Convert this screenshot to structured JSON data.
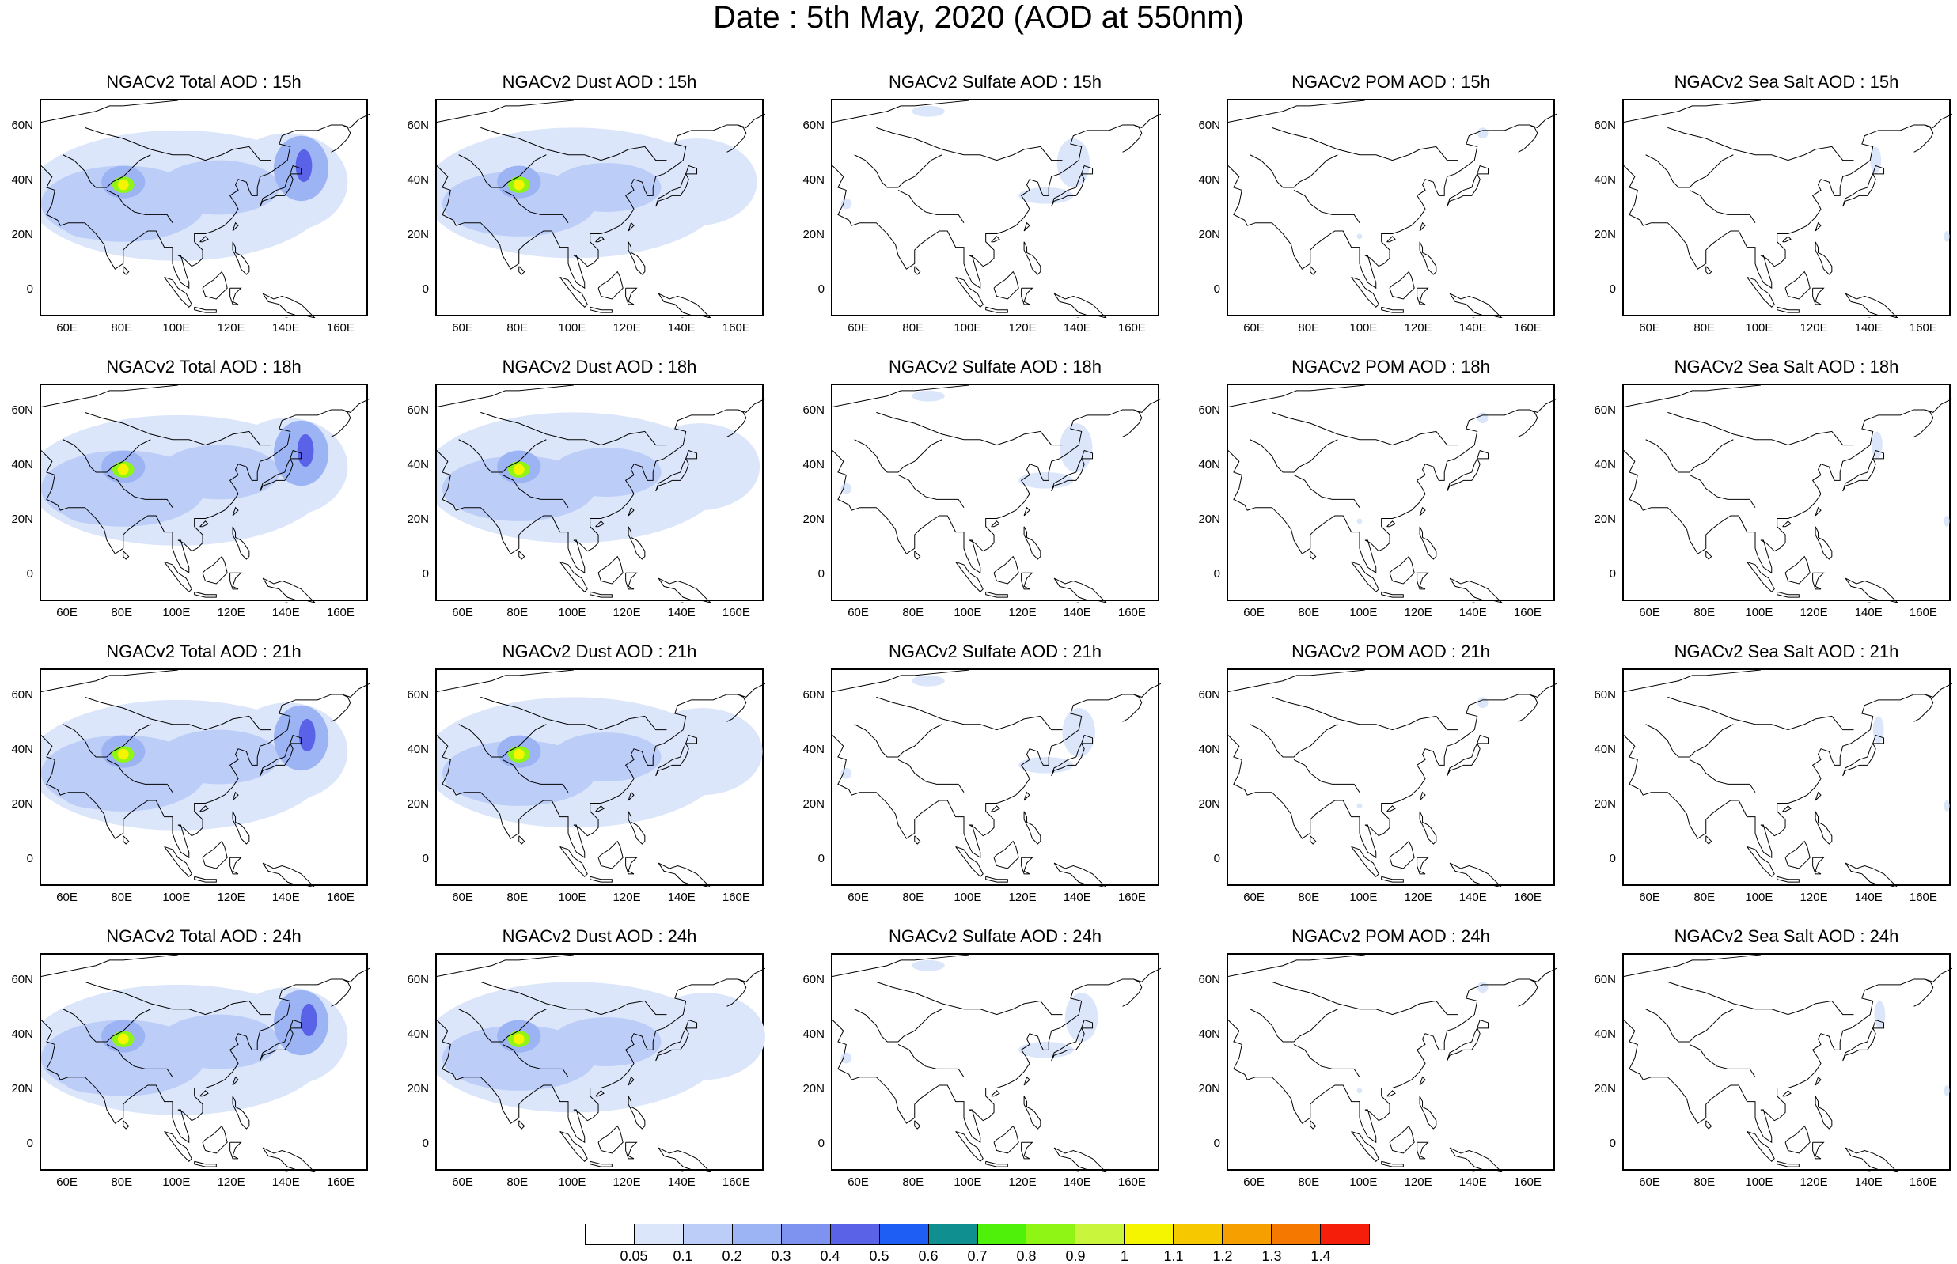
{
  "title": "Date : 5th May, 2020 (AOD at 550nm)",
  "map_axes": {
    "lat_ticks": [
      "60N",
      "40N",
      "20N",
      "0"
    ],
    "lon_ticks": [
      "60E",
      "80E",
      "100E",
      "120E",
      "140E",
      "160E"
    ],
    "lon_range": [
      50,
      170
    ],
    "lat_range": [
      -10,
      70
    ]
  },
  "panels": [
    {
      "title": "NGACv2 Total AOD : 15h",
      "species": "total",
      "hour": 15
    },
    {
      "title": "NGACv2 Dust AOD : 15h",
      "species": "dust",
      "hour": 15
    },
    {
      "title": "NGACv2 Sulfate AOD : 15h",
      "species": "sulfate",
      "hour": 15
    },
    {
      "title": "NGACv2 POM AOD : 15h",
      "species": "pom",
      "hour": 15
    },
    {
      "title": "NGACv2 Sea Salt AOD : 15h",
      "species": "seasalt",
      "hour": 15
    },
    {
      "title": "NGACv2 Total AOD : 18h",
      "species": "total",
      "hour": 18
    },
    {
      "title": "NGACv2 Dust AOD : 18h",
      "species": "dust",
      "hour": 18
    },
    {
      "title": "NGACv2 Sulfate AOD : 18h",
      "species": "sulfate",
      "hour": 18
    },
    {
      "title": "NGACv2 POM AOD : 18h",
      "species": "pom",
      "hour": 18
    },
    {
      "title": "NGACv2 Sea Salt AOD : 18h",
      "species": "seasalt",
      "hour": 18
    },
    {
      "title": "NGACv2 Total AOD : 21h",
      "species": "total",
      "hour": 21
    },
    {
      "title": "NGACv2 Dust AOD : 21h",
      "species": "dust",
      "hour": 21
    },
    {
      "title": "NGACv2 Sulfate AOD : 21h",
      "species": "sulfate",
      "hour": 21
    },
    {
      "title": "NGACv2 POM AOD : 21h",
      "species": "pom",
      "hour": 21
    },
    {
      "title": "NGACv2 Sea Salt AOD : 21h",
      "species": "seasalt",
      "hour": 21
    },
    {
      "title": "NGACv2 Total AOD : 24h",
      "species": "total",
      "hour": 24
    },
    {
      "title": "NGACv2 Dust AOD : 24h",
      "species": "dust",
      "hour": 24
    },
    {
      "title": "NGACv2 Sulfate AOD : 24h",
      "species": "sulfate",
      "hour": 24
    },
    {
      "title": "NGACv2 POM AOD : 24h",
      "species": "pom",
      "hour": 24
    },
    {
      "title": "NGACv2 Sea Salt  AOD : 24h",
      "species": "seasalt",
      "hour": 24
    }
  ],
  "colorbar": {
    "labels": [
      "0.05",
      "0.1",
      "0.2",
      "0.3",
      "0.4",
      "0.5",
      "0.6",
      "0.7",
      "0.8",
      "0.9",
      "1",
      "1.1",
      "1.2",
      "1.3",
      "1.4"
    ],
    "colors": [
      "#ffffff",
      "#dce6fb",
      "#bccdf8",
      "#9db4f4",
      "#7e92ef",
      "#5a63e8",
      "#1f5ef5",
      "#0f8f8f",
      "#4ff00a",
      "#8ff514",
      "#c9f53c",
      "#f5f500",
      "#f5c800",
      "#f5a000",
      "#f57800",
      "#f51e0a"
    ]
  }
}
